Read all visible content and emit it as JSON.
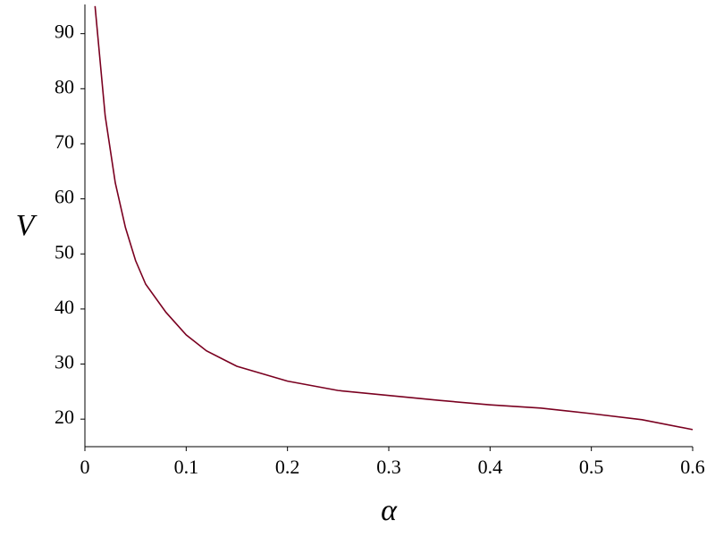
{
  "chart_data": {
    "type": "line",
    "x_label": "α",
    "y_label": "V",
    "x": [
      0.01,
      0.02,
      0.03,
      0.04,
      0.05,
      0.06,
      0.08,
      0.1,
      0.12,
      0.15,
      0.2,
      0.25,
      0.3,
      0.35,
      0.4,
      0.45,
      0.5,
      0.55,
      0.6
    ],
    "series": [
      {
        "color": "#7a0020",
        "values": [
          95,
          75.1,
          62.9,
          54.8,
          48.8,
          44.5,
          39.4,
          35.3,
          32.4,
          29.6,
          26.9,
          25.2,
          24.3,
          23.4,
          22.6,
          22.0,
          21.0,
          19.9,
          18.1
        ]
      }
    ],
    "xlim": [
      0,
      0.6
    ],
    "xticks": [
      0,
      0.1,
      0.2,
      0.3,
      0.4,
      0.5,
      0.6
    ],
    "ylim": [
      15,
      95.3
    ],
    "yticks": [
      20,
      30,
      40,
      50,
      60,
      70,
      80,
      90
    ],
    "grid": false
  }
}
